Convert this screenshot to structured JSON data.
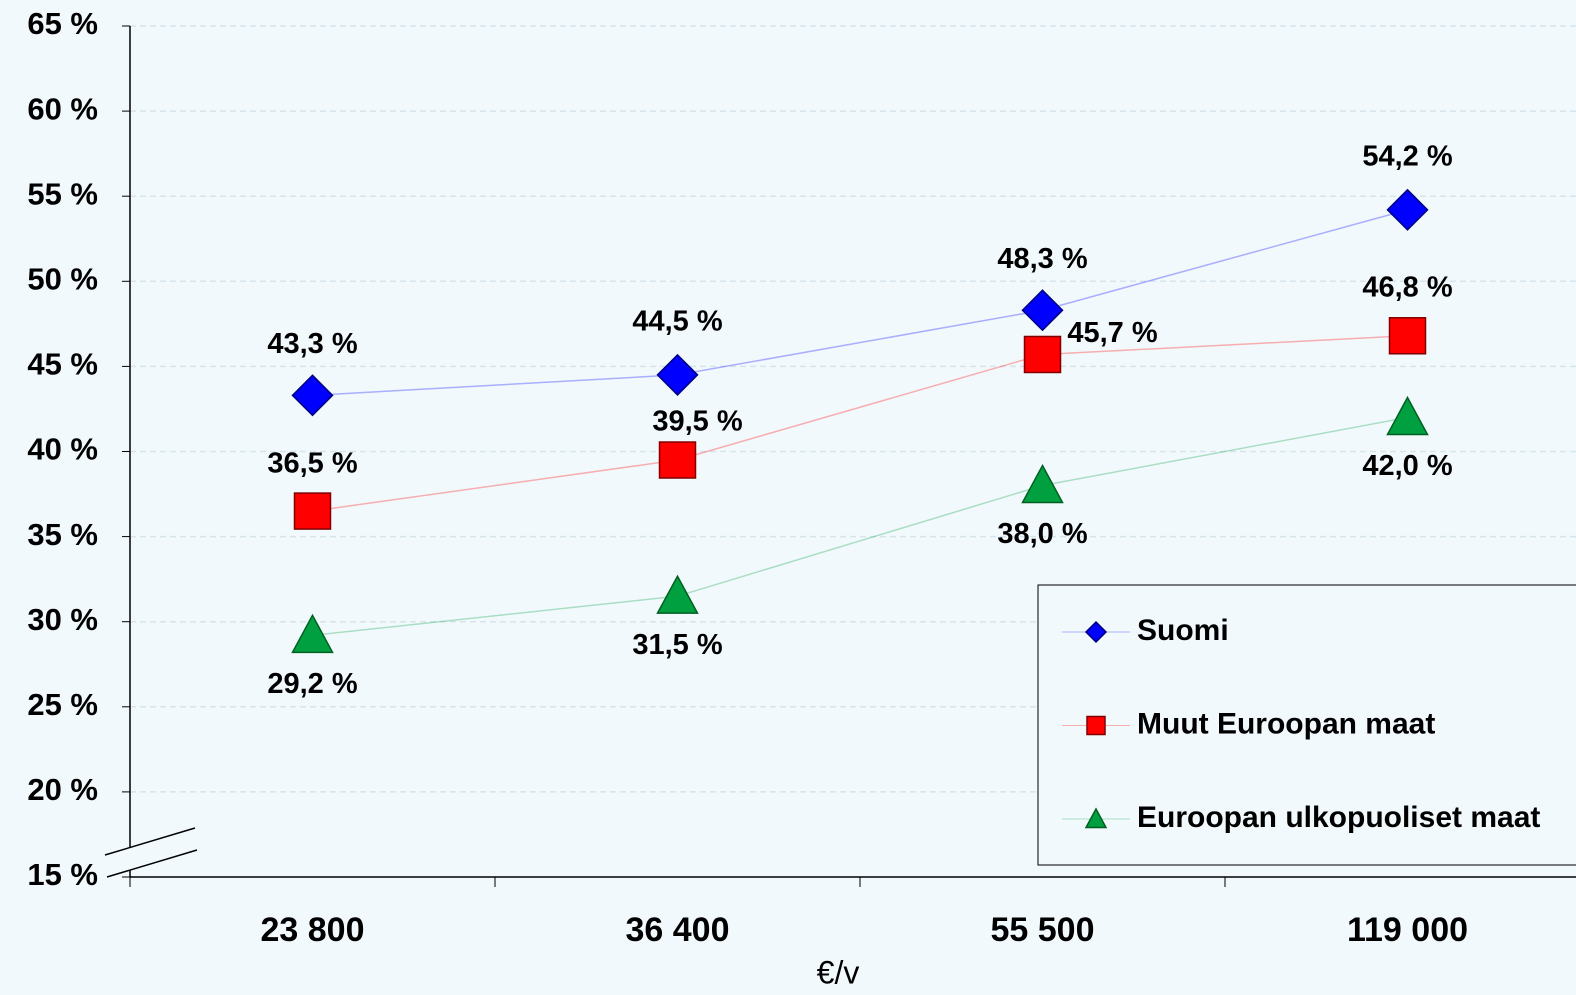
{
  "chart_data": {
    "type": "line",
    "categories": [
      "23 800",
      "36 400",
      "55 500",
      "119 000"
    ],
    "x_label": "€/v",
    "series": [
      {
        "name": "Suomi",
        "color": "#0000ff",
        "marker": "diamond",
        "values": [
          43.3,
          44.5,
          48.3,
          54.2
        ],
        "value_labels": [
          "43,3 %",
          "44,5 %",
          "48,3 %",
          "54,2 %"
        ]
      },
      {
        "name": "Muut Euroopan maat",
        "color": "#ff0000",
        "marker": "square",
        "values": [
          36.5,
          39.5,
          45.7,
          46.8
        ],
        "value_labels": [
          "36,5 %",
          "39,5 %",
          "45,7 %",
          "46,8 %"
        ]
      },
      {
        "name": "Euroopan ulkopuoliset maat",
        "color": "#00a040",
        "marker": "triangle",
        "values": [
          29.2,
          31.5,
          38.0,
          42.0
        ],
        "value_labels": [
          "29,2 %",
          "31,5 %",
          "38,0 %",
          "42,0 %"
        ]
      }
    ],
    "ylim": [
      15,
      65
    ],
    "yticks": [
      {
        "value": 15,
        "label": "15 %"
      },
      {
        "value": 20,
        "label": "20 %"
      },
      {
        "value": 25,
        "label": "25 %"
      },
      {
        "value": 30,
        "label": "30 %"
      },
      {
        "value": 35,
        "label": "35 %"
      },
      {
        "value": 40,
        "label": "40 %"
      },
      {
        "value": 45,
        "label": "45 %"
      },
      {
        "value": 50,
        "label": "50 %"
      },
      {
        "value": 55,
        "label": "55 %"
      },
      {
        "value": 60,
        "label": "60 %"
      },
      {
        "value": 65,
        "label": "65 %"
      }
    ],
    "grid": true,
    "legend": "lower right"
  }
}
